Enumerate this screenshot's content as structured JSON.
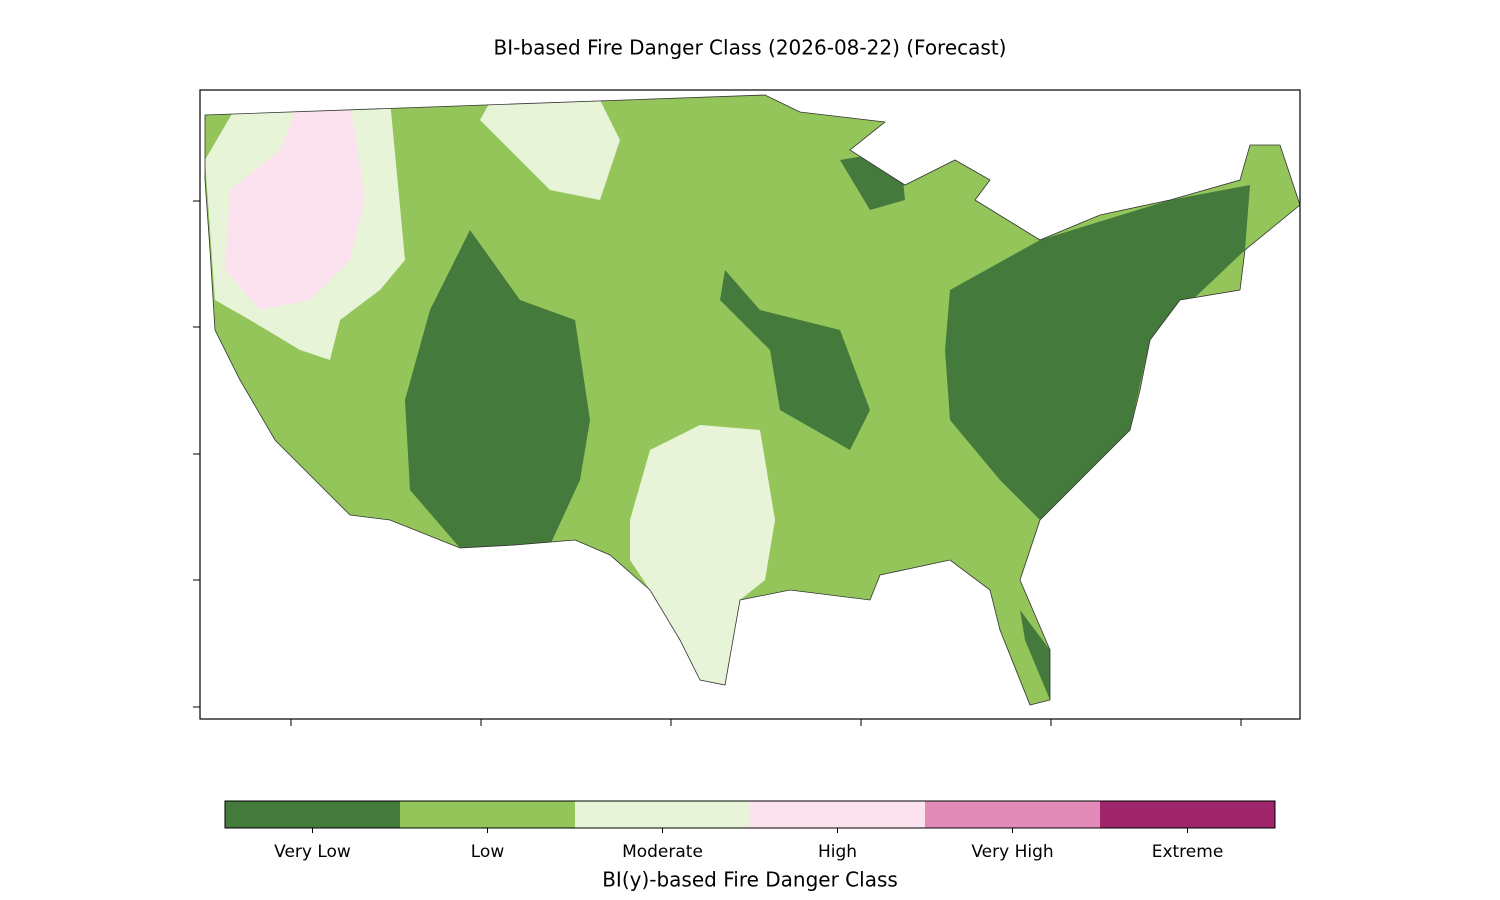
{
  "title": "BI-based Fire Danger Class (2026-08-22) (Forecast)",
  "colorbar": {
    "label": "BI(y)-based Fire Danger Class",
    "classes": [
      {
        "name": "Very Low",
        "color": "#447a3b"
      },
      {
        "name": "Low",
        "color": "#93c55b"
      },
      {
        "name": "Moderate",
        "color": "#e8f4d8"
      },
      {
        "name": "High",
        "color": "#fbe2ee"
      },
      {
        "name": "Very High",
        "color": "#e38bb8"
      },
      {
        "name": "Extreme",
        "color": "#a0266c"
      }
    ]
  }
}
